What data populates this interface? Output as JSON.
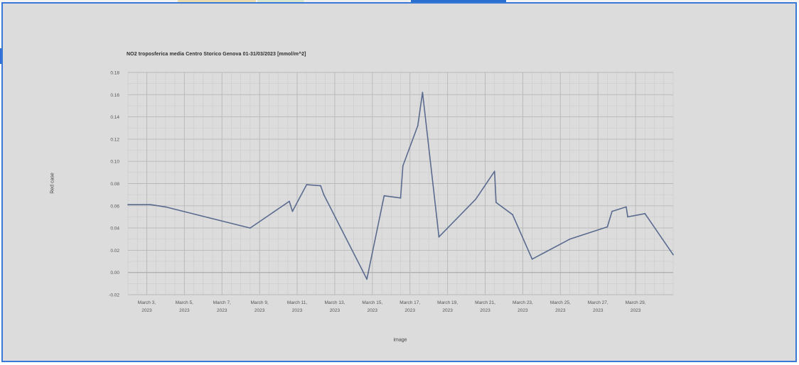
{
  "chart_data": {
    "type": "line",
    "title": "NO2 troposferica media Centro Storico Genova 01-31/03/2023 [mmol/m^2]",
    "xlabel": "image",
    "ylabel": "Red case",
    "ylim": [
      -0.02,
      0.18
    ],
    "yticks": [
      -0.02,
      0.0,
      0.02,
      0.04,
      0.06,
      0.08,
      0.1,
      0.12,
      0.14,
      0.16,
      0.18
    ],
    "ytick_labels": [
      "-0.02",
      "0.00",
      "0.02",
      "0.04",
      "0.06",
      "0.08",
      "0.10",
      "0.12",
      "0.14",
      "0.16",
      "0.18"
    ],
    "xlim": [
      "2023-03-02",
      "2023-03-31"
    ],
    "xticks": [
      {
        "date": "2023-03-03",
        "line1": "March 3,",
        "line2": "2023"
      },
      {
        "date": "2023-03-05",
        "line1": "March 5,",
        "line2": "2023"
      },
      {
        "date": "2023-03-07",
        "line1": "March 7,",
        "line2": "2023"
      },
      {
        "date": "2023-03-09",
        "line1": "March 9,",
        "line2": "2023"
      },
      {
        "date": "2023-03-11",
        "line1": "March 11,",
        "line2": "2023"
      },
      {
        "date": "2023-03-13",
        "line1": "March 13,",
        "line2": "2023"
      },
      {
        "date": "2023-03-15",
        "line1": "March 15,",
        "line2": "2023"
      },
      {
        "date": "2023-03-17",
        "line1": "March 17,",
        "line2": "2023"
      },
      {
        "date": "2023-03-19",
        "line1": "March 19,",
        "line2": "2023"
      },
      {
        "date": "2023-03-21",
        "line1": "March 21,",
        "line2": "2023"
      },
      {
        "date": "2023-03-23",
        "line1": "March 23,",
        "line2": "2023"
      },
      {
        "date": "2023-03-25",
        "line1": "March 25,",
        "line2": "2023"
      },
      {
        "date": "2023-03-27",
        "line1": "March 27,",
        "line2": "2023"
      },
      {
        "date": "2023-03-29",
        "line1": "March 29,",
        "line2": "2023"
      }
    ],
    "grid": true,
    "line_color": "#5a6b8f",
    "series": [
      {
        "points": [
          {
            "x": "2023-03-02 00:00",
            "y": 0.061
          },
          {
            "x": "2023-03-03 05:00",
            "y": 0.061
          },
          {
            "x": "2023-03-04 00:00",
            "y": 0.059
          },
          {
            "x": "2023-03-08 12:00",
            "y": 0.04
          },
          {
            "x": "2023-03-10 14:00",
            "y": 0.064
          },
          {
            "x": "2023-03-10 18:00",
            "y": 0.055
          },
          {
            "x": "2023-03-11 12:00",
            "y": 0.079
          },
          {
            "x": "2023-03-12 06:00",
            "y": 0.078
          },
          {
            "x": "2023-03-12 10:00",
            "y": 0.07
          },
          {
            "x": "2023-03-14 17:00",
            "y": -0.006
          },
          {
            "x": "2023-03-15 15:00",
            "y": 0.069
          },
          {
            "x": "2023-03-16 12:00",
            "y": 0.067
          },
          {
            "x": "2023-03-16 15:00",
            "y": 0.096
          },
          {
            "x": "2023-03-17 10:00",
            "y": 0.132
          },
          {
            "x": "2023-03-17 16:00",
            "y": 0.162
          },
          {
            "x": "2023-03-18 13:00",
            "y": 0.032
          },
          {
            "x": "2023-03-20 12:00",
            "y": 0.066
          },
          {
            "x": "2023-03-21 12:00",
            "y": 0.091
          },
          {
            "x": "2023-03-21 14:00",
            "y": 0.063
          },
          {
            "x": "2023-03-22 11:00",
            "y": 0.052
          },
          {
            "x": "2023-03-23 12:00",
            "y": 0.012
          },
          {
            "x": "2023-03-25 12:00",
            "y": 0.03
          },
          {
            "x": "2023-03-27 12:00",
            "y": 0.041
          },
          {
            "x": "2023-03-27 18:00",
            "y": 0.055
          },
          {
            "x": "2023-03-28 12:00",
            "y": 0.059
          },
          {
            "x": "2023-03-28 14:00",
            "y": 0.05
          },
          {
            "x": "2023-03-29 12:00",
            "y": 0.053
          },
          {
            "x": "2023-03-31 00:00",
            "y": 0.016
          }
        ]
      }
    ]
  }
}
